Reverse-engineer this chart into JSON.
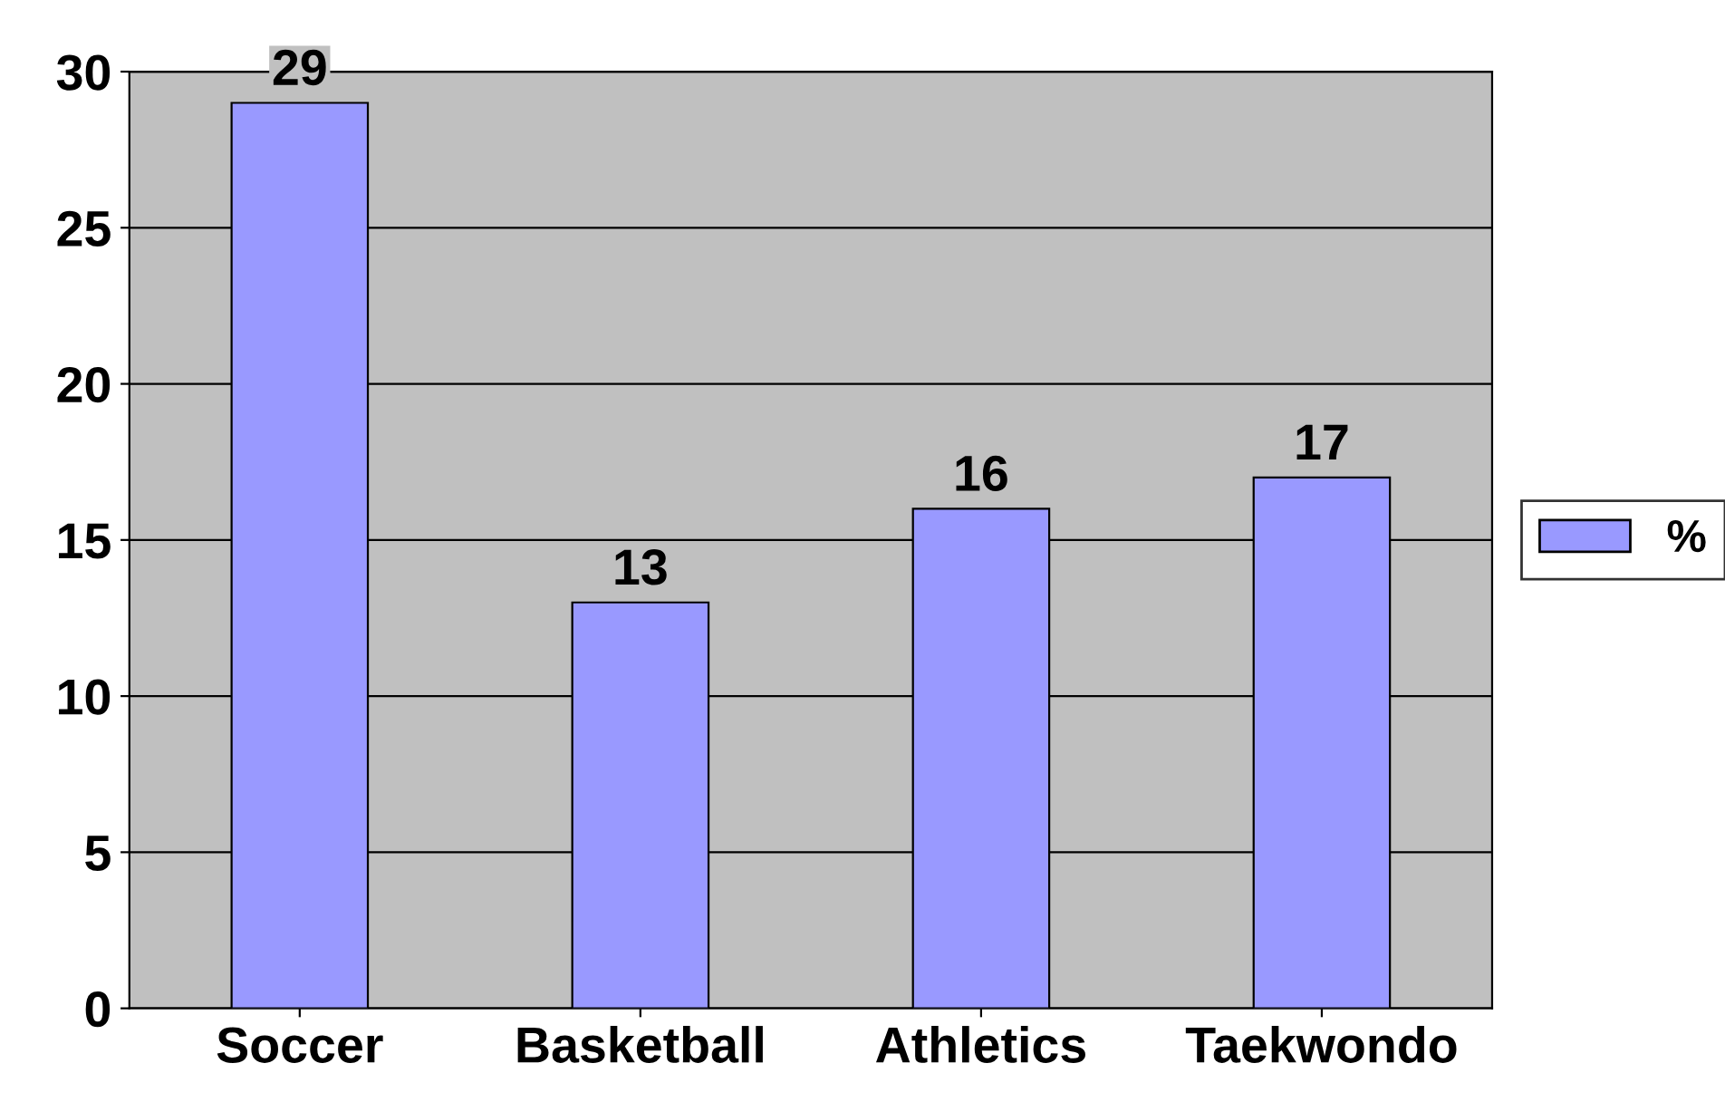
{
  "chart_data": {
    "type": "bar",
    "categories": [
      "Soccer",
      "Basketball",
      "Athletics",
      "Taekwondo"
    ],
    "series": [
      {
        "name": "%",
        "color": "#9999ff",
        "values": [
          29,
          13,
          16,
          17
        ]
      }
    ],
    "ylim": [
      0,
      30
    ],
    "yticks": [
      0,
      5,
      10,
      15,
      20,
      25,
      30
    ],
    "grid": "y",
    "legend": "right",
    "data_labels": true
  }
}
